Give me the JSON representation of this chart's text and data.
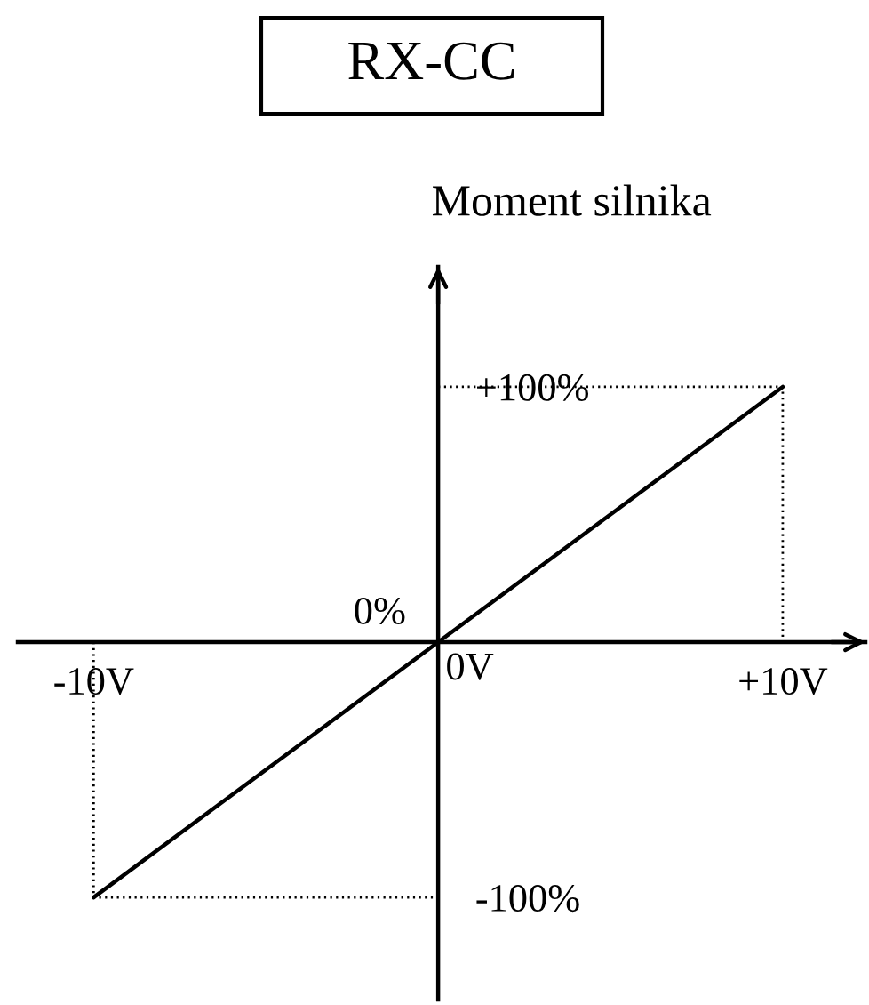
{
  "chart_data": {
    "type": "line",
    "title": "RX-CC",
    "ylabel": "Moment silnika",
    "xlim": [
      -12.2,
      12.4
    ],
    "ylim": [
      -140,
      147
    ],
    "xticks": [
      {
        "value": -10,
        "label": "-10V"
      },
      {
        "value": 10,
        "label": "+10V"
      }
    ],
    "yticks": [
      {
        "value": -100,
        "label": "-100%"
      },
      {
        "value": 100,
        "label": "+100%"
      }
    ],
    "annotations": [
      {
        "text": "0V",
        "x": 0,
        "y": 0
      },
      {
        "text": "0%",
        "x": 0,
        "y": 0
      }
    ],
    "line_style": "solid",
    "series": [
      {
        "color": "#000000",
        "x": [
          -10,
          0,
          10
        ],
        "values": [
          -100,
          0,
          100
        ]
      },
      {
        "color": "#000000",
        "line_style": "dotted",
        "x": [
          0,
          10,
          10
        ],
        "values": [
          100,
          100,
          0
        ]
      },
      {
        "color": "#000000",
        "line_style": "dotted",
        "x": [
          -10,
          -10,
          0
        ],
        "values": [
          0,
          -100,
          -100
        ]
      }
    ]
  }
}
